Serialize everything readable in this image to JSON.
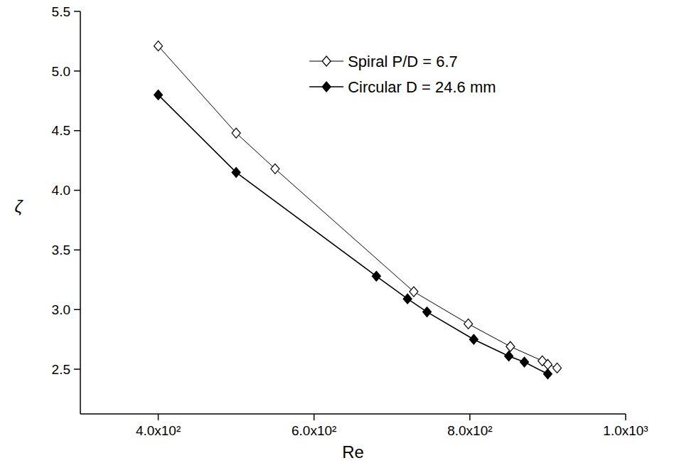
{
  "chart_data": {
    "type": "line",
    "x_label": "Re",
    "y_label": "ζ",
    "xlim": [
      300,
      1000
    ],
    "ylim": [
      2.125,
      5.5
    ],
    "xticks": [
      {
        "value": 400,
        "label": "4.0x10²"
      },
      {
        "value": 600,
        "label": "6.0x10²"
      },
      {
        "value": 800,
        "label": "8.0x10²"
      },
      {
        "value": 1000,
        "label": "1.0x10³"
      }
    ],
    "yticks": [
      2.5,
      {
        "value": 3.0,
        "label": "3.0"
      },
      3.5,
      {
        "value": 4.0,
        "label": "4.0"
      },
      4.5,
      {
        "value": 5.0,
        "label": "5.0"
      },
      5.5
    ],
    "grid": false,
    "legend": "upper right",
    "series": [
      {
        "name": "Spiral P/D = 6.7",
        "color": "#000000",
        "marker": "open-diamond",
        "line_style": "solid",
        "x": [
          400,
          500,
          550,
          728,
          798,
          852,
          893,
          900,
          912
        ],
        "values": [
          5.21,
          4.48,
          4.18,
          3.15,
          2.88,
          2.69,
          2.57,
          2.54,
          2.51
        ]
      },
      {
        "name": "Circular D = 24.6 mm",
        "color": "#000000",
        "marker": "diamond",
        "line_style": "solid",
        "x": [
          400,
          500,
          680,
          720,
          745,
          805,
          850,
          870,
          900
        ],
        "values": [
          4.8,
          4.15,
          3.28,
          3.09,
          2.98,
          2.75,
          2.61,
          2.56,
          2.46
        ]
      }
    ]
  }
}
